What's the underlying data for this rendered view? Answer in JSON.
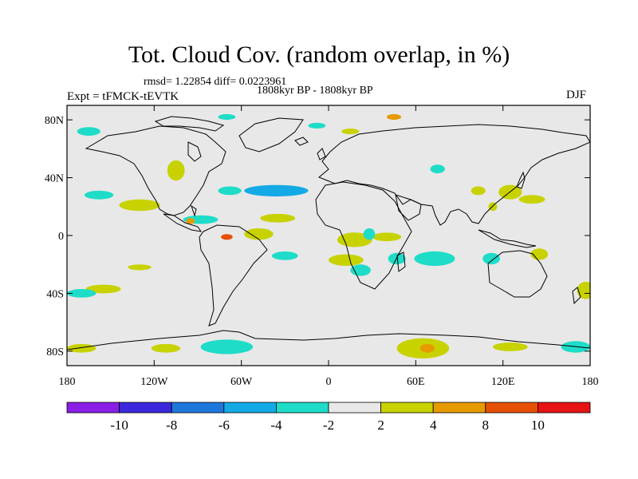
{
  "title": "Tot. Cloud Cov. (random overlap, in %)",
  "stats": "rmsd= 1.22854 diff= 0.0223961",
  "experiment": "Expt = tFMCK-tEVTK",
  "period": "1808kyr BP - 1808kyr BP",
  "season": "DJF",
  "colors": {
    "background": "#e8e8e8",
    "land_outline": "#000000",
    "bins": [
      "#8a1ee6",
      "#3c28dc",
      "#1e78dc",
      "#14aae6",
      "#1edcc8",
      "#e8e8e8",
      "#c8d200",
      "#e69a00",
      "#e65000",
      "#e61414"
    ]
  },
  "map": {
    "projection": "equirectangular",
    "lon_range": [
      -180,
      180
    ],
    "lat_range": [
      -90,
      90
    ],
    "lon_ticks": [
      {
        "value": -180,
        "label": "180"
      },
      {
        "value": -120,
        "label": "120W"
      },
      {
        "value": -60,
        "label": "60W"
      },
      {
        "value": 0,
        "label": "0"
      },
      {
        "value": 60,
        "label": "60E"
      },
      {
        "value": 120,
        "label": "120E"
      },
      {
        "value": 180,
        "label": "180"
      }
    ],
    "lat_ticks": [
      {
        "value": 80,
        "label": "80N"
      },
      {
        "value": 40,
        "label": "40N"
      },
      {
        "value": 0,
        "label": "0"
      },
      {
        "value": -40,
        "label": "40S"
      },
      {
        "value": -80,
        "label": "80S"
      }
    ]
  },
  "colorbar": {
    "labels": [
      {
        "boundary": 1,
        "label": "-10"
      },
      {
        "boundary": 2,
        "label": "-8"
      },
      {
        "boundary": 3,
        "label": "-6"
      },
      {
        "boundary": 4,
        "label": "-4"
      },
      {
        "boundary": 5,
        "label": "-2"
      },
      {
        "boundary": 6,
        "label": "2"
      },
      {
        "boundary": 7,
        "label": "4"
      },
      {
        "boundary": 8,
        "label": "8"
      },
      {
        "boundary": 9,
        "label": "10"
      }
    ]
  },
  "anomalies": [
    {
      "lon": -36,
      "lat": 31,
      "rlon": 22,
      "rlat": 4,
      "bin": 3
    },
    {
      "lon": -68,
      "lat": 31,
      "rlon": 8,
      "rlat": 3,
      "bin": 4
    },
    {
      "lon": -158,
      "lat": 28,
      "rlon": 10,
      "rlat": 3,
      "bin": 4
    },
    {
      "lon": -130,
      "lat": 21,
      "rlon": 14,
      "rlat": 4,
      "bin": 6
    },
    {
      "lon": -105,
      "lat": 45,
      "rlon": 6,
      "rlat": 7,
      "bin": 6
    },
    {
      "lon": -88,
      "lat": 11,
      "rlon": 12,
      "rlat": 3,
      "bin": 4
    },
    {
      "lon": -35,
      "lat": 12,
      "rlon": 12,
      "rlat": 3,
      "bin": 6
    },
    {
      "lon": -48,
      "lat": 1,
      "rlon": 10,
      "rlat": 4,
      "bin": 6
    },
    {
      "lon": -30,
      "lat": -14,
      "rlon": 9,
      "rlat": 3,
      "bin": 4
    },
    {
      "lon": -130,
      "lat": -22,
      "rlon": 8,
      "rlat": 2,
      "bin": 6
    },
    {
      "lon": -155,
      "lat": -37,
      "rlon": 12,
      "rlat": 3,
      "bin": 6
    },
    {
      "lon": 18,
      "lat": -3,
      "rlon": 12,
      "rlat": 5,
      "bin": 6
    },
    {
      "lon": 40,
      "lat": -1,
      "rlon": 10,
      "rlat": 3,
      "bin": 6
    },
    {
      "lon": 12,
      "lat": -17,
      "rlon": 12,
      "rlat": 4,
      "bin": 6
    },
    {
      "lon": 22,
      "lat": -24,
      "rlon": 7,
      "rlat": 4,
      "bin": 4
    },
    {
      "lon": 28,
      "lat": 1,
      "rlon": 4,
      "rlat": 4,
      "bin": 4
    },
    {
      "lon": 47,
      "lat": -16,
      "rlon": 6,
      "rlat": 4,
      "bin": 4
    },
    {
      "lon": 73,
      "lat": -16,
      "rlon": 14,
      "rlat": 5,
      "bin": 4
    },
    {
      "lon": 112,
      "lat": -16,
      "rlon": 6,
      "rlat": 4,
      "bin": 4
    },
    {
      "lon": 145,
      "lat": -13,
      "rlon": 6,
      "rlat": 4,
      "bin": 6
    },
    {
      "lon": -95,
      "lat": 10,
      "rlon": 3,
      "rlat": 2,
      "bin": 7
    },
    {
      "lon": -70,
      "lat": -1,
      "rlon": 4,
      "rlat": 2,
      "bin": 8
    },
    {
      "lon": 75,
      "lat": 46,
      "rlon": 5,
      "rlat": 3,
      "bin": 4
    },
    {
      "lon": 103,
      "lat": 31,
      "rlon": 5,
      "rlat": 3,
      "bin": 6
    },
    {
      "lon": 125,
      "lat": 30,
      "rlon": 8,
      "rlat": 5,
      "bin": 6
    },
    {
      "lon": 140,
      "lat": 25,
      "rlon": 9,
      "rlat": 3,
      "bin": 6
    },
    {
      "lon": 113,
      "lat": 20,
      "rlon": 3,
      "rlat": 3,
      "bin": 6
    },
    {
      "lon": -8,
      "lat": 76,
      "rlon": 6,
      "rlat": 2,
      "bin": 4
    },
    {
      "lon": 15,
      "lat": 72,
      "rlon": 6,
      "rlat": 2,
      "bin": 6
    },
    {
      "lon": 45,
      "lat": 82,
      "rlon": 5,
      "rlat": 2,
      "bin": 7
    },
    {
      "lon": -165,
      "lat": 72,
      "rlon": 8,
      "rlat": 3,
      "bin": 4
    },
    {
      "lon": -70,
      "lat": 82,
      "rlon": 6,
      "rlat": 2,
      "bin": 4
    },
    {
      "lon": -170,
      "lat": -40,
      "rlon": 10,
      "rlat": 3,
      "bin": 4
    },
    {
      "lon": -170,
      "lat": -78,
      "rlon": 10,
      "rlat": 3,
      "bin": 6
    },
    {
      "lon": -112,
      "lat": -78,
      "rlon": 10,
      "rlat": 3,
      "bin": 6
    },
    {
      "lon": -70,
      "lat": -77,
      "rlon": 18,
      "rlat": 5,
      "bin": 4
    },
    {
      "lon": 65,
      "lat": -78,
      "rlon": 18,
      "rlat": 7,
      "bin": 6
    },
    {
      "lon": 68,
      "lat": -78,
      "rlon": 5,
      "rlat": 3,
      "bin": 7
    },
    {
      "lon": 125,
      "lat": -77,
      "rlon": 12,
      "rlat": 3,
      "bin": 6
    },
    {
      "lon": 170,
      "lat": -77,
      "rlon": 10,
      "rlat": 4,
      "bin": 4
    },
    {
      "lon": 177,
      "lat": -38,
      "rlon": 6,
      "rlat": 6,
      "bin": 6
    }
  ]
}
